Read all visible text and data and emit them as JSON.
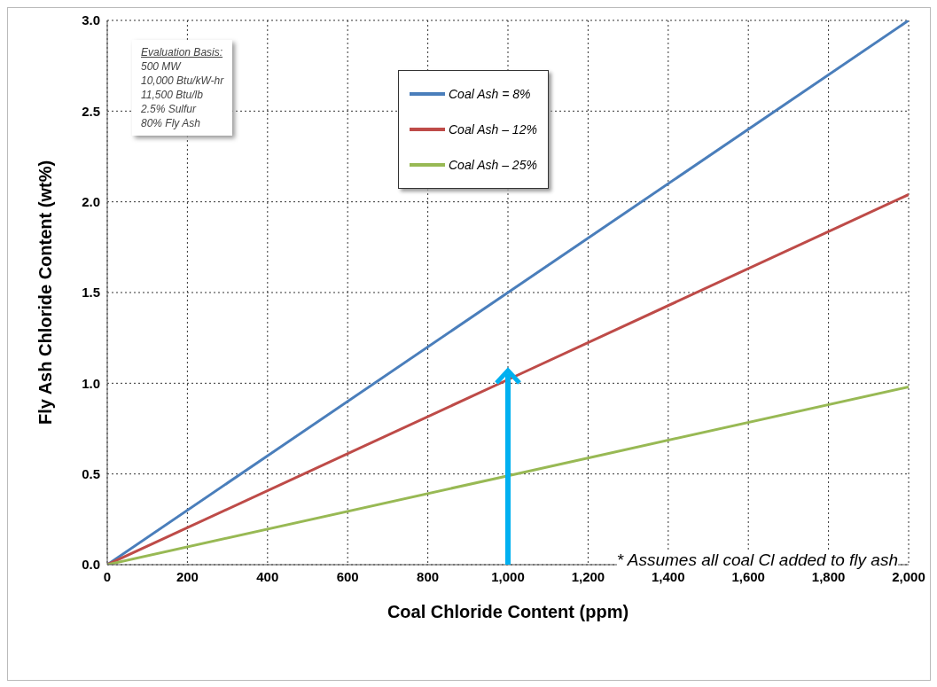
{
  "chart_data": {
    "type": "line",
    "xlabel": "Coal Chloride Content (ppm)",
    "ylabel": "Fly Ash Chloride Content (wt%)",
    "x": [
      0,
      1000,
      2000
    ],
    "series": [
      {
        "name": "Coal Ash = 8%",
        "color": "#4a7ebb",
        "values": [
          0,
          1.5,
          3.0
        ]
      },
      {
        "name": "Coal Ash – 12%",
        "color": "#be4b48",
        "values": [
          0,
          1.02,
          2.04
        ]
      },
      {
        "name": "Coal Ash – 25%",
        "color": "#98b954",
        "values": [
          0,
          0.49,
          0.98
        ]
      }
    ],
    "xlim": [
      0,
      2000
    ],
    "xticks": [
      0,
      200,
      400,
      600,
      800,
      {
        "value": 1000,
        "label": "1,000"
      },
      {
        "value": 1200,
        "label": "1,200"
      },
      {
        "value": 1400,
        "label": "1,400"
      },
      {
        "value": 1600,
        "label": "1,600"
      },
      {
        "value": 1800,
        "label": "1,800"
      },
      {
        "value": 2000,
        "label": "2,000"
      }
    ],
    "ylim": [
      0,
      3
    ],
    "yticks": [
      {
        "value": 0,
        "label": "0.0"
      },
      {
        "value": 0.5,
        "label": "0.5"
      },
      {
        "value": 1,
        "label": "1.0"
      },
      {
        "value": 1.5,
        "label": "1.5"
      },
      {
        "value": 2,
        "label": "2.0"
      },
      {
        "value": 2.5,
        "label": "2.5"
      },
      {
        "value": 3,
        "label": "3.0"
      }
    ],
    "grid": true,
    "legend": "top",
    "marker": "none",
    "line_style": "solid",
    "annotations": [
      "Evaluation Basis:",
      "500 MW",
      "10,000 Btu/kW-hr",
      "11,500 Btu/lb",
      "2.5% Sulfur",
      "80% Fly Ash",
      "* Assumes all coal Cl added to fly ash"
    ]
  }
}
